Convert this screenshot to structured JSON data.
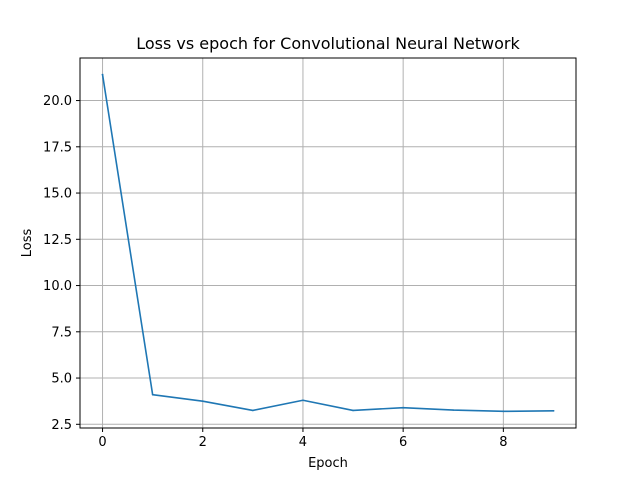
{
  "chart_data": {
    "type": "line",
    "title": "Loss vs epoch for Convolutional Neural Network",
    "xlabel": "Epoch",
    "ylabel": "Loss",
    "x": [
      0,
      1,
      2,
      3,
      4,
      5,
      6,
      7,
      8,
      9
    ],
    "series": [
      {
        "values": [
          21.4,
          4.1,
          3.75,
          3.25,
          3.8,
          3.25,
          3.4,
          3.27,
          3.2,
          3.23
        ]
      }
    ],
    "xlim": [
      -0.45,
      9.45
    ],
    "ylim": [
      2.3,
      22.3
    ],
    "xticks": [
      0,
      2,
      4,
      6,
      8
    ],
    "xtick_labels": [
      "0",
      "2",
      "4",
      "6",
      "8"
    ],
    "yticks": [
      2.5,
      5.0,
      7.5,
      10.0,
      12.5,
      15.0,
      17.5,
      20.0
    ],
    "ytick_labels": [
      "2.5",
      "5.0",
      "7.5",
      "10.0",
      "12.5",
      "15.0",
      "17.5",
      "20.0"
    ],
    "grid": true,
    "line_color": "#1f77b4",
    "grid_color": "#b0b0b0"
  }
}
